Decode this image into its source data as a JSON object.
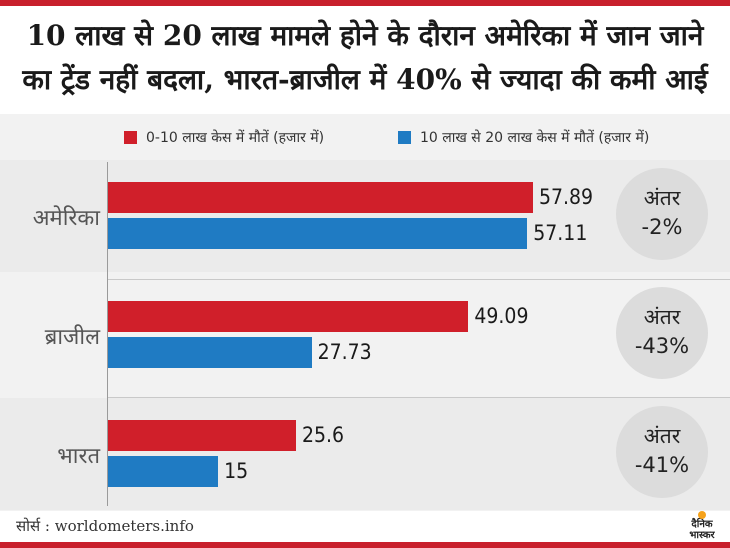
{
  "chart_data": {
    "type": "bar",
    "orientation": "horizontal",
    "title": [
      "10 लाख से 20 लाख मामले होने के दौरान अमेरिका में जान जाने",
      "का ट्रेंड नहीं बदला, भारत-ब्राजील में 40% से ज्यादा की कमी आई"
    ],
    "categories": [
      "अमेरिका",
      "ब्राजील",
      "भारत"
    ],
    "series": [
      {
        "name": "0-10 लाख केस में मौतें (हजार में)",
        "color": "#d01f2a",
        "values": [
          57.89,
          49.09,
          25.6
        ],
        "labels": [
          "57.89",
          "49.09",
          "25.6"
        ]
      },
      {
        "name": "10 लाख से 20 लाख केस में मौतें (हजार में)",
        "color": "#1f7bc3",
        "values": [
          57.11,
          27.73,
          15
        ],
        "labels": [
          "57.11",
          "27.73",
          "15"
        ]
      }
    ],
    "difference": {
      "label": "अंतर",
      "values": [
        "-2%",
        "-43%",
        "-41%"
      ]
    },
    "xlim": [
      0,
      60
    ],
    "legend": "top",
    "grid": false,
    "source": "सोर्स : worldometers.info"
  },
  "branding": {
    "logo_lines": [
      "दैनिक",
      "भास्कर"
    ]
  },
  "colors": {
    "accent": "#c8202c",
    "background": "#f2f2f2",
    "circle": "#dcdcdc"
  }
}
